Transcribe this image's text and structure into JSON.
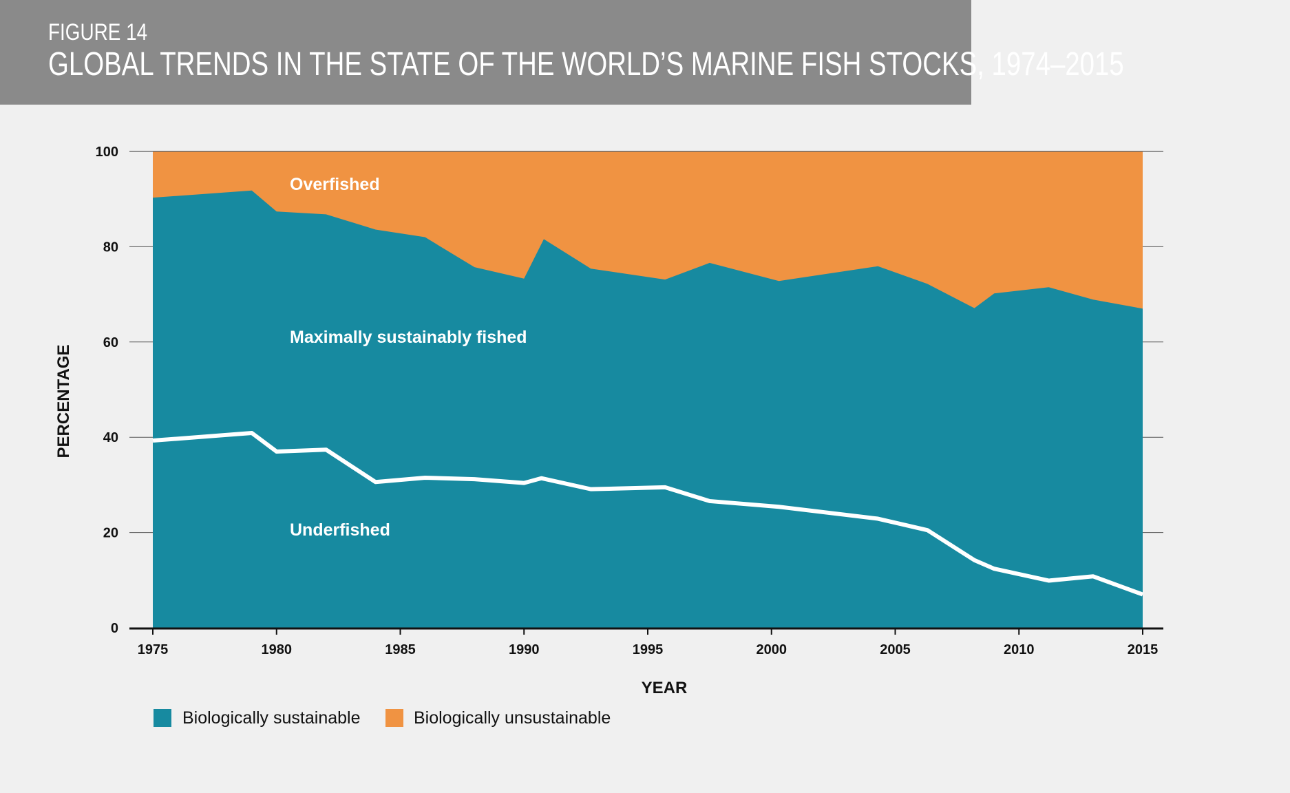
{
  "header": {
    "figure_label": "FIGURE 14",
    "title": "GLOBAL TRENDS IN THE STATE OF THE WORLD’S MARINE FISH STOCKS, 1974–2015"
  },
  "colors": {
    "sustainable": "#178aa0",
    "unsustainable": "#f09342",
    "header_bg": "#8a8a8a",
    "underfished_line": "#ffffff"
  },
  "chart_data": {
    "type": "area",
    "title": "GLOBAL TRENDS IN THE STATE OF THE WORLD’S MARINE FISH STOCKS, 1974–2015",
    "xlabel": "YEAR",
    "ylabel": "PERCENTAGE",
    "xlim": [
      1975,
      2015
    ],
    "ylim": [
      0,
      100
    ],
    "x_ticks": [
      "1975",
      "1980",
      "1985",
      "1990",
      "1995",
      "2000",
      "2005",
      "2010",
      "2015"
    ],
    "y_ticks": [
      "0",
      "20",
      "40",
      "60",
      "80",
      "100"
    ],
    "grid": "horizontal",
    "legend_position": "bottom-left",
    "legend": [
      {
        "label": "Biologically sustainable",
        "color": "#178aa0"
      },
      {
        "label": "Biologically unsustainable",
        "color": "#f09342"
      }
    ],
    "region_labels": {
      "overfished": "Overfished",
      "maximally": "Maximally sustainably fished",
      "underfished": "Underfished"
    },
    "series": [
      {
        "name": "Biologically sustainable",
        "x": [
          1975,
          1979,
          1980,
          1982,
          1984,
          1986,
          1988,
          1990,
          1990.8,
          1992.7,
          1995.7,
          1997.5,
          2000.3,
          2004.3,
          2006.3,
          2008.2,
          2009,
          2011.2,
          2013,
          2015
        ],
        "y": [
          90.3,
          91.8,
          87.4,
          86.8,
          83.6,
          82.0,
          75.7,
          73.3,
          81.6,
          75.4,
          73.1,
          76.6,
          72.8,
          75.9,
          72.2,
          67.1,
          70.2,
          71.5,
          68.9,
          67.0
        ]
      },
      {
        "name": "Underfished",
        "x": [
          1975,
          1979,
          1980,
          1982,
          1984,
          1986,
          1988,
          1990,
          1990.7,
          1992.7,
          1995.7,
          1997.5,
          2000.3,
          2004.3,
          2006.3,
          2008.2,
          2009,
          2011.2,
          2013,
          2015
        ],
        "y": [
          39.3,
          40.9,
          37.0,
          37.4,
          30.6,
          31.5,
          31.2,
          30.4,
          31.4,
          29.1,
          29.5,
          26.6,
          25.4,
          22.9,
          20.5,
          14.2,
          12.4,
          9.9,
          10.8,
          7.0
        ]
      }
    ]
  }
}
